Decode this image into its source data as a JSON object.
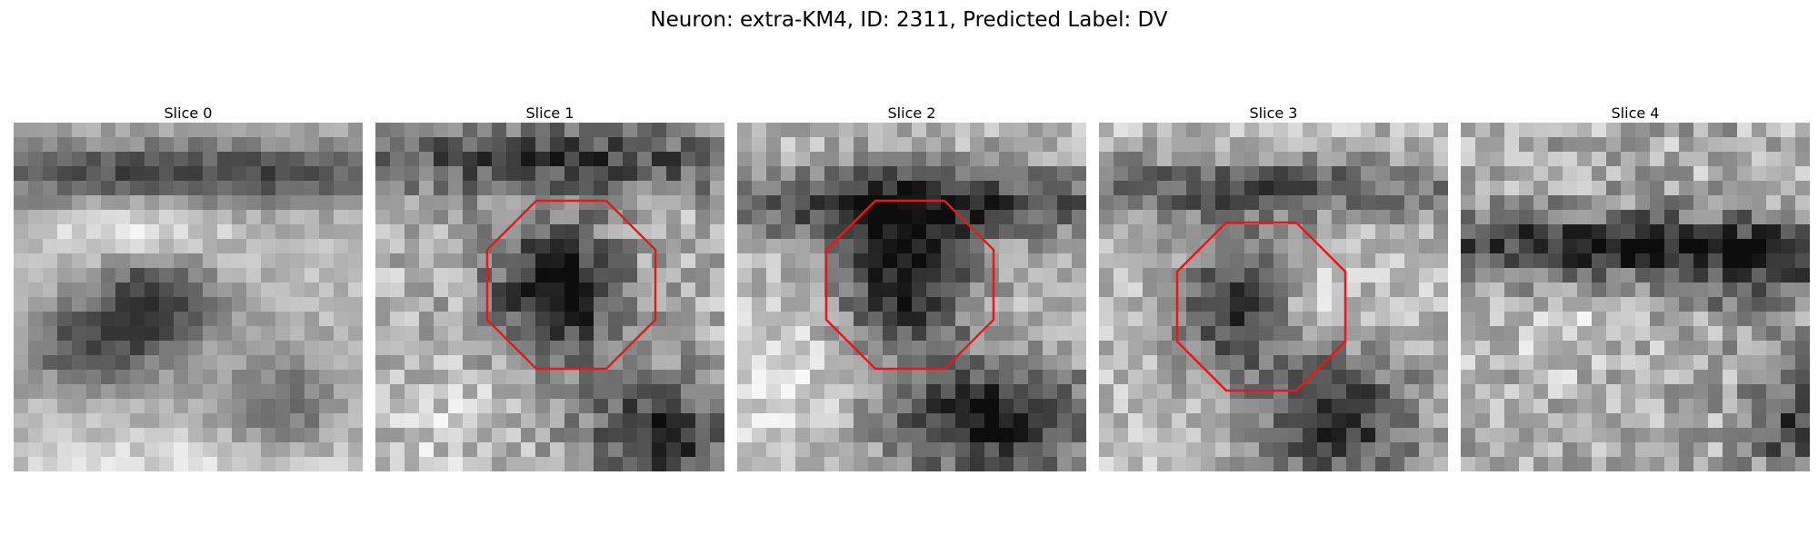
{
  "figure": {
    "title": "Neuron: extra-KM4, ID: 2311, Predicted Label: DV"
  },
  "colors": {
    "roi_outline": "#e31a1c",
    "background": "#ffffff"
  },
  "panels": [
    {
      "title": "Slice 0",
      "roi": false,
      "seed": 11
    },
    {
      "title": "Slice 1",
      "roi": true,
      "seed": 23
    },
    {
      "title": "Slice 2",
      "roi": true,
      "seed": 37
    },
    {
      "title": "Slice 3",
      "roi": true,
      "seed": 41
    },
    {
      "title": "Slice 4",
      "roi": false,
      "seed": 59
    }
  ]
}
